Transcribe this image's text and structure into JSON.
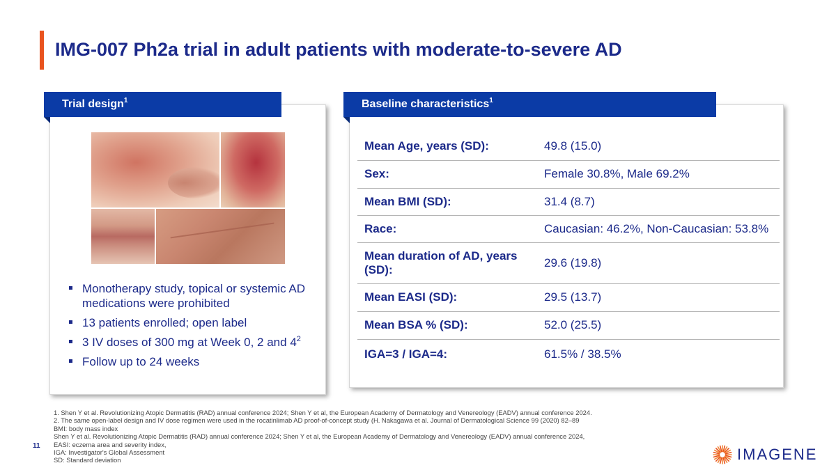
{
  "title": "IMG-007 Ph2a trial in adult patients with moderate-to-severe AD",
  "trial_design": {
    "header": "Trial design",
    "header_sup": "1",
    "bullets": [
      {
        "text": "Monotherapy study, topical or systemic AD medications were prohibited",
        "sup": ""
      },
      {
        "text": "13 patients enrolled; open label",
        "sup": ""
      },
      {
        "text": "3 IV doses of 300 mg at Week 0, 2 and 4",
        "sup": "2"
      },
      {
        "text": "Follow up to 24 weeks",
        "sup": ""
      }
    ]
  },
  "baseline": {
    "header": "Baseline characteristics",
    "header_sup": "1",
    "rows": [
      {
        "label": "Mean Age, years (SD):",
        "value": "49.8 (15.0)"
      },
      {
        "label": "Sex:",
        "value": "Female 30.8%, Male 69.2%"
      },
      {
        "label": "Mean BMI (SD):",
        "value": "31.4 (8.7)"
      },
      {
        "label": "Race:",
        "value": "Caucasian: 46.2%, Non-Caucasian: 53.8%"
      },
      {
        "label": "Mean duration of AD, years (SD):",
        "value": "29.6 (19.8)"
      },
      {
        "label": "Mean EASI (SD):",
        "value": "29.5 (13.7)"
      },
      {
        "label": "Mean BSA % (SD):",
        "value": "52.0 (25.5)"
      },
      {
        "label": "IGA=3 / IGA=4:",
        "value": "61.5% / 38.5%"
      }
    ]
  },
  "footnotes": [
    "1. Shen Y et al. Revolutionizing Atopic Dermatitis (RAD) annual conference 2024; Shen Y et al, the European Academy of Dermatology and Venereology (EADV) annual conference 2024.",
    "2. The same open-label design and IV dose regimen were used in the rocatinlimab AD proof-of-concept study (H. Nakagawa et al. Journal of Dermatological Science 99 (2020) 82–89",
    "BMI: body mass index",
    "Shen Y et al. Revolutionizing Atopic Dermatitis (RAD) annual conference 2024; Shen Y et al, the European Academy of Dermatology and Venereology (EADV) annual conference 2024,",
    "EASI: eczema area and severity index,",
    "IGA: Investigator's Global Assessment",
    "SD: Standard deviation"
  ],
  "page_number": "11",
  "logo": {
    "text": "IMAGENE",
    "icon": "sunburst-logo-icon"
  },
  "colors": {
    "brand_blue": "#1c2a8a",
    "header_blue": "#0b3ba6",
    "accent_orange": "#e9531e"
  }
}
